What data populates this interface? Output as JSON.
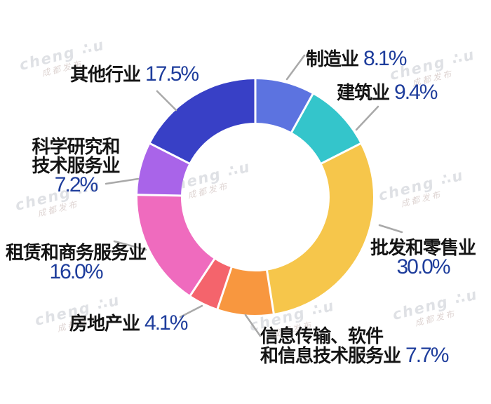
{
  "watermark": {
    "text": "cheng ∴u",
    "sub": "成都发布"
  },
  "chart_data": {
    "type": "pie",
    "subtype": "donut",
    "layout": "clockwise-from-top",
    "legend_position": "none",
    "unit": "%",
    "inner_radius_ratio": 0.63,
    "label_name_color": "#141414",
    "label_value_color": "#1e3d9c",
    "categories": [
      "制造业",
      "建筑业",
      "批发和零售业",
      "信息传输、软件和信息技术服务业",
      "房地产业",
      "租赁和商务服务业",
      "科学研究和技术服务业",
      "其他行业"
    ],
    "values": [
      8.1,
      9.4,
      30.0,
      7.7,
      4.1,
      16.0,
      7.2,
      17.5
    ],
    "series": [
      {
        "key": "manufacturing",
        "label": "制造业",
        "value": 8.1,
        "pct_text": "8.1%",
        "color": "#5c73e0"
      },
      {
        "key": "construction",
        "label": "建筑业",
        "value": 9.4,
        "pct_text": "9.4%",
        "color": "#34c5cb"
      },
      {
        "key": "wholesale-retail",
        "label": "批发和零售业",
        "value": 30.0,
        "pct_text": "30.0%",
        "color": "#f6c64b"
      },
      {
        "key": "info-tech",
        "label": "信息传输、软件和信息技术服务业",
        "label_line1": "信息传输、软件",
        "label_line2": "和信息技术服务业",
        "value": 7.7,
        "pct_text": "7.7%",
        "color": "#f8973f"
      },
      {
        "key": "real-estate",
        "label": "房地产业",
        "value": 4.1,
        "pct_text": "4.1%",
        "color": "#f4646c"
      },
      {
        "key": "leasing-business",
        "label": "租赁和商务服务业",
        "value": 16.0,
        "pct_text": "16.0%",
        "color": "#ef6bbe"
      },
      {
        "key": "science-tech",
        "label": "科学研究和技术服务业",
        "label_line1": "科学研究和",
        "label_line2": "技术服务业",
        "value": 7.2,
        "pct_text": "7.2%",
        "color": "#a964e9"
      },
      {
        "key": "others",
        "label": "其他行业",
        "value": 17.5,
        "pct_text": "17.5%",
        "color": "#3840c6"
      }
    ]
  }
}
